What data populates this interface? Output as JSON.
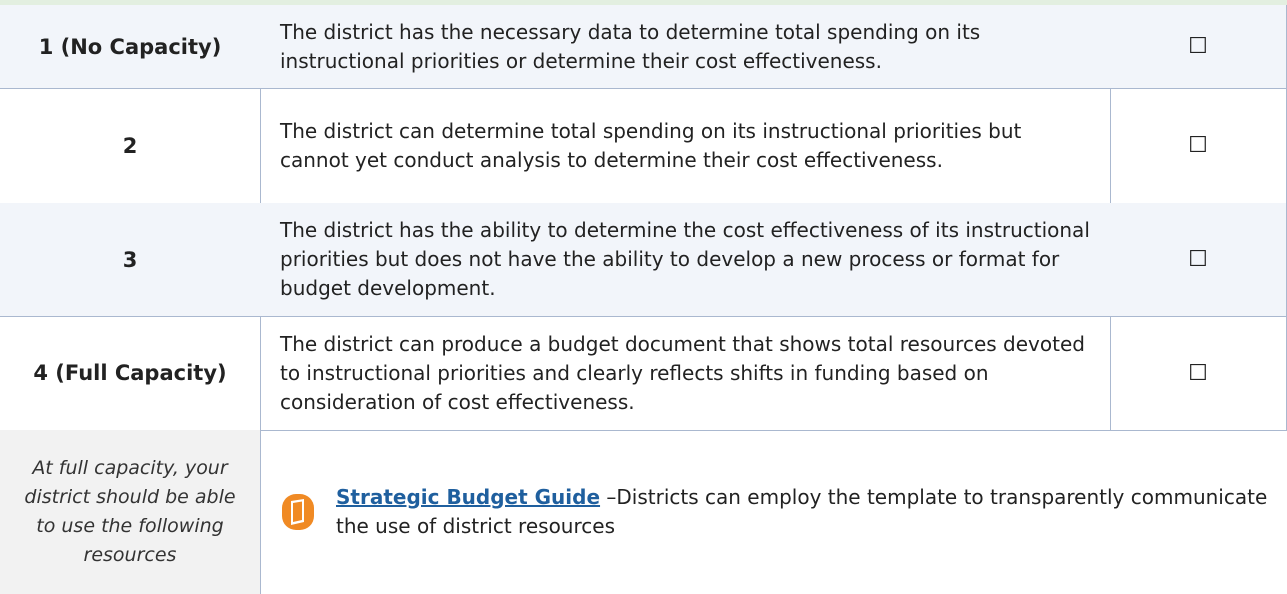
{
  "table": {
    "rows": [
      {
        "level": "1 (No Capacity)",
        "description": "The district has the necessary data to determine total spending on its instructional priorities or determine their cost effectiveness.",
        "checkbox": "☐"
      },
      {
        "level": "2",
        "description": "The district can determine total spending on its instructional priorities but cannot yet conduct analysis to determine their cost effectiveness.",
        "checkbox": "☐"
      },
      {
        "level": "3",
        "description": "The district has the ability to determine the cost effectiveness of its instructional priorities but does not have the ability to develop a new process or format for budget development.",
        "checkbox": "☐"
      },
      {
        "level": "4 (Full Capacity)",
        "description": "The district can produce a budget document that shows total resources devoted to instructional priorities and clearly reflects shifts in funding based on consideration of cost effectiveness.",
        "checkbox": "☐"
      }
    ]
  },
  "resources": {
    "note": "At full capacity, your district should be able to use the following resources",
    "items": [
      {
        "link": "Strategic Budget Guide",
        "description": "–Districts can employ the template to transparently communicate the use of district resources"
      }
    ]
  }
}
